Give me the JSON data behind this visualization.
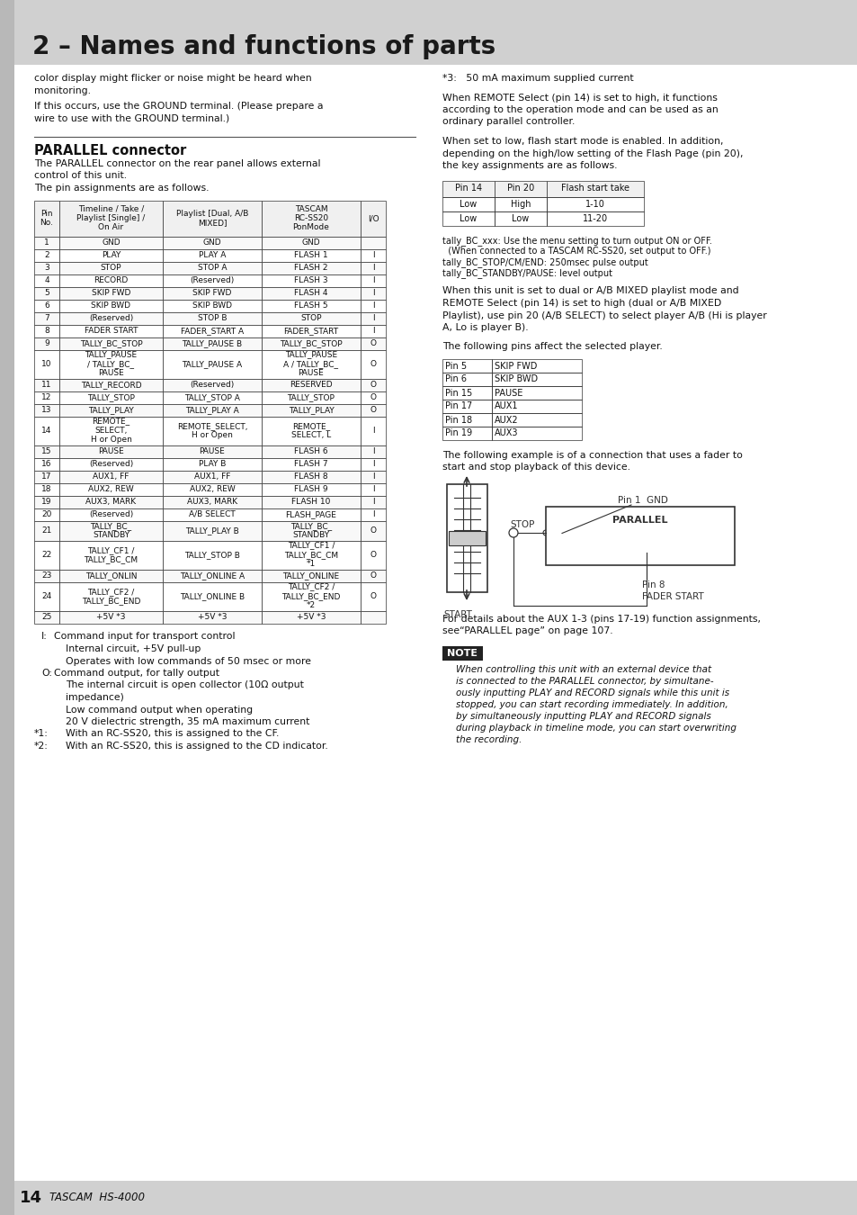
{
  "title": "2 – Names and functions of parts",
  "page_bg": "#ffffff",
  "header_bg": "#d0d0d0",
  "title_color": "#1a1a1a",
  "body_color": "#111111",
  "left_intro_text": [
    "color display might flicker or noise might be heard when",
    "monitoring.",
    "If this occurs, use the GROUND terminal. (Please prepare a",
    "wire to use with the GROUND terminal.)"
  ],
  "section_title": "PARALLEL connector",
  "section_intro": [
    "The PARALLEL connector on the rear panel allows external",
    "control of this unit.",
    "The pin assignments are as follows."
  ],
  "table_headers": [
    "Pin\nNo.",
    "Timeline / Take /\nPlaylist [Single] /\nOn Air",
    "Playlist [Dual, A/B\nMIXED]",
    "TASCAM\nRC-SS20\nPonMode",
    "I/O"
  ],
  "table_rows": [
    [
      "1",
      "GND",
      "GND",
      "GND",
      ""
    ],
    [
      "2",
      "PLAY",
      "PLAY A",
      "FLASH 1",
      "I"
    ],
    [
      "3",
      "STOP",
      "STOP A",
      "FLASH 2",
      "I"
    ],
    [
      "4",
      "RECORD",
      "(Reserved)",
      "FLASH 3",
      "I"
    ],
    [
      "5",
      "SKIP FWD",
      "SKIP FWD",
      "FLASH 4",
      "I"
    ],
    [
      "6",
      "SKIP BWD",
      "SKIP BWD",
      "FLASH 5",
      "I"
    ],
    [
      "7",
      "(Reserved)",
      "STOP B",
      "STOP",
      "I"
    ],
    [
      "8",
      "FADER START",
      "FADER_START A",
      "FADER_START",
      "I"
    ],
    [
      "9",
      "TALLY_BC_STOP",
      "TALLY_PAUSE B",
      "TALLY_BC_STOP",
      "O"
    ],
    [
      "10",
      "TALLY_PAUSE\n/ TALLY_BC_\nPAUSE",
      "TALLY_PAUSE A",
      "TALLY_PAUSE\nA / TALLY_BC_\nPAUSE",
      "O"
    ],
    [
      "11",
      "TALLY_RECORD",
      "(Reserved)",
      "RESERVED",
      "O"
    ],
    [
      "12",
      "TALLY_STOP",
      "TALLY_STOP A",
      "TALLY_STOP",
      "O"
    ],
    [
      "13",
      "TALLY_PLAY",
      "TALLY_PLAY A",
      "TALLY_PLAY",
      "O"
    ],
    [
      "14",
      "REMOTE_\nSELECT,\nH or Open",
      "REMOTE_SELECT,\nH or Open",
      "REMOTE_\nSELECT, L",
      "I"
    ],
    [
      "15",
      "PAUSE",
      "PAUSE",
      "FLASH 6",
      "I"
    ],
    [
      "16",
      "(Reserved)",
      "PLAY B",
      "FLASH 7",
      "I"
    ],
    [
      "17",
      "AUX1, FF",
      "AUX1, FF",
      "FLASH 8",
      "I"
    ],
    [
      "18",
      "AUX2, REW",
      "AUX2, REW",
      "FLASH 9",
      "I"
    ],
    [
      "19",
      "AUX3, MARK",
      "AUX3, MARK",
      "FLASH 10",
      "I"
    ],
    [
      "20",
      "(Reserved)",
      "A/B SELECT",
      "FLASH_PAGE",
      "I"
    ],
    [
      "21",
      "TALLY_BC_\nSTANDBY",
      "TALLY_PLAY B",
      "TALLY_BC_\nSTANDBY",
      "O"
    ],
    [
      "22",
      "TALLY_CF1 /\nTALLY_BC_CM",
      "TALLY_STOP B",
      "TALLY_CF1 /\nTALLY_BC_CM\n*1",
      "O"
    ],
    [
      "23",
      "TALLY_ONLIN",
      "TALLY_ONLINE A",
      "TALLY_ONLINE",
      "O"
    ],
    [
      "24",
      "TALLY_CF2 /\nTALLY_BC_END",
      "TALLY_ONLINE B",
      "TALLY_CF2 /\nTALLY_BC_END\n*2",
      "O"
    ],
    [
      "25",
      "+5V *3",
      "+5V *3",
      "+5V *3",
      ""
    ]
  ],
  "right_col_texts": [
    "*3:   50 mA maximum supplied current",
    "",
    "When REMOTE Select (pin 14) is set to high, it functions",
    "according to the operation mode and can be used as an",
    "ordinary parallel controller.",
    "",
    "When set to low, flash start mode is enabled. In addition,",
    "depending on the high/low setting of the Flash Page (pin 20),",
    "the key assignments are as follows."
  ],
  "flash_table_headers": [
    "Pin 14",
    "Pin 20",
    "Flash start take"
  ],
  "flash_table_rows": [
    [
      "Low",
      "High",
      "1-10"
    ],
    [
      "Low",
      "Low",
      "11-20"
    ]
  ],
  "tally_texts": [
    "tally_BC_xxx: Use the menu setting to turn output ON or OFF.",
    "  (When connected to a TASCAM RC-SS20, set output to OFF.)",
    "tally_BC_STOP/CM/END: 250msec pulse output",
    "tally_BC_STANDBY/PAUSE: level output"
  ],
  "mixed_text": [
    "When this unit is set to dual or A/B MIXED playlist mode and",
    "REMOTE Select (pin 14) is set to high (dual or A/B MIXED",
    "Playlist), use pin 20 (A/B SELECT) to select player A/B (Hi is player",
    "A, Lo is player B).",
    "",
    "The following pins affect the selected player."
  ],
  "pins_table_rows": [
    [
      "Pin 5",
      "SKIP FWD"
    ],
    [
      "Pin 6",
      "SKIP BWD"
    ],
    [
      "Pin 15",
      "PAUSE"
    ],
    [
      "Pin 17",
      "AUX1"
    ],
    [
      "Pin 18",
      "AUX2"
    ],
    [
      "Pin 19",
      "AUX3"
    ]
  ],
  "fader_text": [
    "The following example is of a connection that uses a fader to",
    "start and stop playback of this device."
  ],
  "aux_text": [
    "For details about the AUX 1-3 (pins 17-19) function assignments,",
    "see“PARALLEL page” on page 107."
  ],
  "note_title": "NOTE",
  "note_text": "When controlling this unit with an external device that\nis connected to the PARALLEL connector, by simultane-\nously inputting PLAY and RECORD signals while this unit is\nstopped, you can start recording immediately. In addition,\nby simultaneously inputting PLAY and RECORD signals\nduring playback in timeline mode, you can start overwriting\nthe recording.",
  "page_number": "14",
  "page_brand": "TASCAM  HS-4000",
  "fn_lines": [
    [
      "I:",
      "Command input for transport control"
    ],
    [
      "",
      "Internal circuit, +5V pull-up"
    ],
    [
      "",
      "Operates with low commands of 50 msec or more"
    ],
    [
      "O:",
      "Command output, for tally output"
    ],
    [
      "",
      "The internal circuit is open collector (10Ω output"
    ],
    [
      "",
      "impedance)"
    ],
    [
      "",
      "Low command output when operating"
    ],
    [
      "",
      "20 V dielectric strength, 35 mA maximum current"
    ],
    [
      "*1:",
      "With an RC-SS20, this is assigned to the CF."
    ],
    [
      "*2:",
      "With an RC-SS20, this is assigned to the CD indicator."
    ]
  ]
}
